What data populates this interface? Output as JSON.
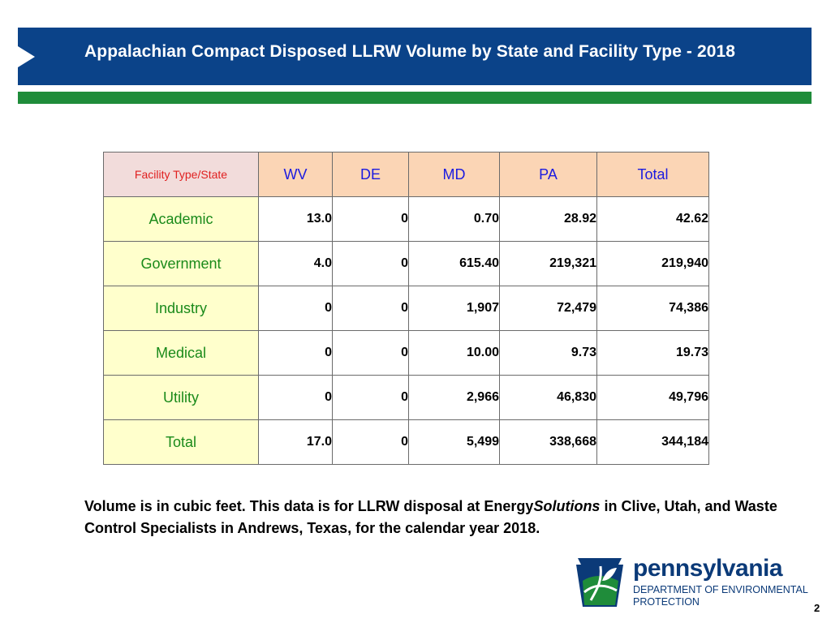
{
  "title": "Appalachian Compact Disposed LLRW Volume by State and Facility Type - 2018",
  "table": {
    "corner_label": "Facility Type/State",
    "headers": [
      "WV",
      "DE",
      "MD",
      "PA",
      "Total"
    ],
    "rows": [
      {
        "label": "Academic",
        "values": [
          "13.0",
          "0",
          "0.70",
          "28.92",
          "42.62"
        ]
      },
      {
        "label": "Government",
        "values": [
          "4.0",
          "0",
          "615.40",
          "219,321",
          "219,940"
        ]
      },
      {
        "label": "Industry",
        "values": [
          "0",
          "0",
          "1,907",
          "72,479",
          "74,386"
        ]
      },
      {
        "label": "Medical",
        "values": [
          "0",
          "0",
          "10.00",
          "9.73",
          "19.73"
        ]
      },
      {
        "label": "Utility",
        "values": [
          "0",
          "0",
          "2,966",
          "46,830",
          "49,796"
        ]
      },
      {
        "label": "Total",
        "values": [
          "17.0",
          "0",
          "5,499",
          "338,668",
          "344,184"
        ]
      }
    ]
  },
  "footnote": {
    "part1": "Volume is in cubic feet.  This data is for LLRW disposal at Energy",
    "italic": "Solutions",
    "part2": " in Clive, Utah, and Waste Control Specialists in Andrews, Texas, for the calendar year 2018."
  },
  "logo": {
    "wordmark": "pennsylvania",
    "dept_line1": "DEPARTMENT OF ENVIRONMENTAL",
    "dept_line2": "PROTECTION",
    "icon": "keystone-logo-icon"
  },
  "page_number": "2",
  "colors": {
    "title_bar": "#0b4389",
    "green_bar": "#1f8c3a",
    "corner_bg": "#f2dcdb",
    "header_bg": "#fbd5b5",
    "row_label_bg": "#ffffcc",
    "header_text": "#1b1be0",
    "row_label_text": "#1a8a1a",
    "corner_text": "#e02020"
  }
}
